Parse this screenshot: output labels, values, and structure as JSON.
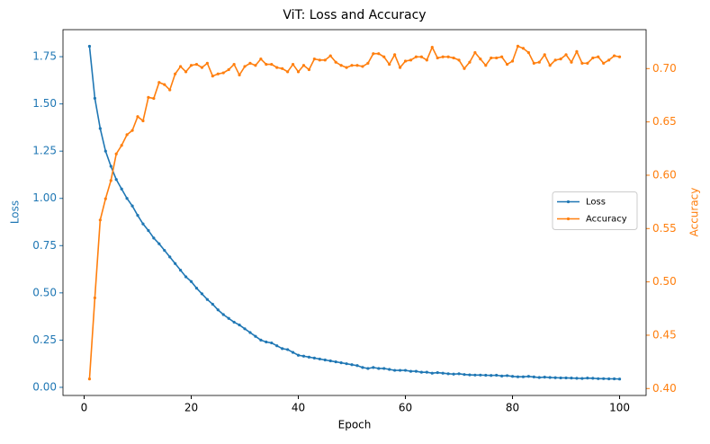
{
  "chart_data": {
    "type": "line",
    "title": "ViT: Loss and Accuracy",
    "x_label": "Epoch",
    "y_label": "Loss",
    "y2_label": "Accuracy",
    "x": [
      1,
      2,
      3,
      4,
      5,
      6,
      7,
      8,
      9,
      10,
      11,
      12,
      13,
      14,
      15,
      16,
      17,
      18,
      19,
      20,
      21,
      22,
      23,
      24,
      25,
      26,
      27,
      28,
      29,
      30,
      31,
      32,
      33,
      34,
      35,
      36,
      37,
      38,
      39,
      40,
      41,
      42,
      43,
      44,
      45,
      46,
      47,
      48,
      49,
      50,
      51,
      52,
      53,
      54,
      55,
      56,
      57,
      58,
      59,
      60,
      61,
      62,
      63,
      64,
      65,
      66,
      67,
      68,
      69,
      70,
      71,
      72,
      73,
      74,
      75,
      76,
      77,
      78,
      79,
      80,
      81,
      82,
      83,
      84,
      85,
      86,
      87,
      88,
      89,
      90,
      91,
      92,
      93,
      94,
      95,
      96,
      97,
      98,
      99,
      100
    ],
    "series": [
      {
        "name": "Loss",
        "color": "#1f77b4",
        "axis": "y",
        "values": [
          1.805,
          1.53,
          1.37,
          1.25,
          1.17,
          1.1,
          1.05,
          1.0,
          0.96,
          0.91,
          0.865,
          0.83,
          0.79,
          0.76,
          0.725,
          0.69,
          0.655,
          0.62,
          0.585,
          0.56,
          0.525,
          0.495,
          0.465,
          0.44,
          0.41,
          0.385,
          0.365,
          0.345,
          0.33,
          0.31,
          0.29,
          0.27,
          0.25,
          0.24,
          0.235,
          0.22,
          0.205,
          0.2,
          0.185,
          0.17,
          0.165,
          0.16,
          0.155,
          0.15,
          0.145,
          0.14,
          0.135,
          0.13,
          0.125,
          0.12,
          0.115,
          0.105,
          0.1,
          0.105,
          0.1,
          0.1,
          0.095,
          0.09,
          0.09,
          0.09,
          0.085,
          0.085,
          0.08,
          0.08,
          0.075,
          0.078,
          0.075,
          0.072,
          0.07,
          0.072,
          0.068,
          0.066,
          0.065,
          0.065,
          0.064,
          0.063,
          0.064,
          0.06,
          0.062,
          0.058,
          0.056,
          0.056,
          0.058,
          0.055,
          0.052,
          0.054,
          0.052,
          0.051,
          0.05,
          0.05,
          0.049,
          0.048,
          0.047,
          0.049,
          0.048,
          0.046,
          0.046,
          0.045,
          0.045,
          0.044
        ]
      },
      {
        "name": "Accuracy",
        "color": "#ff7f0e",
        "axis": "y2",
        "values": [
          0.409,
          0.485,
          0.558,
          0.578,
          0.595,
          0.62,
          0.628,
          0.638,
          0.642,
          0.655,
          0.651,
          0.673,
          0.672,
          0.687,
          0.685,
          0.68,
          0.695,
          0.702,
          0.697,
          0.703,
          0.704,
          0.701,
          0.705,
          0.693,
          0.695,
          0.696,
          0.699,
          0.704,
          0.694,
          0.702,
          0.705,
          0.703,
          0.709,
          0.704,
          0.704,
          0.701,
          0.7,
          0.697,
          0.704,
          0.697,
          0.703,
          0.699,
          0.709,
          0.708,
          0.708,
          0.712,
          0.706,
          0.703,
          0.701,
          0.703,
          0.703,
          0.702,
          0.705,
          0.714,
          0.714,
          0.711,
          0.704,
          0.713,
          0.701,
          0.707,
          0.708,
          0.711,
          0.711,
          0.708,
          0.72,
          0.71,
          0.711,
          0.711,
          0.71,
          0.708,
          0.7,
          0.706,
          0.715,
          0.709,
          0.703,
          0.71,
          0.71,
          0.711,
          0.704,
          0.707,
          0.721,
          0.719,
          0.715,
          0.705,
          0.706,
          0.713,
          0.703,
          0.708,
          0.709,
          0.713,
          0.706,
          0.716,
          0.705,
          0.705,
          0.71,
          0.711,
          0.705,
          0.708,
          0.712,
          0.711
        ]
      }
    ],
    "xlim": [
      -3.95,
      104.95
    ],
    "xticks": [
      0,
      20,
      40,
      60,
      80,
      100
    ],
    "ylim": [
      -0.043,
      1.893
    ],
    "yticks": [
      {
        "value": 0,
        "label": "0.00"
      },
      0.25,
      {
        "value": 0.5,
        "label": "0.50"
      },
      0.75,
      {
        "value": 1,
        "label": "1.00"
      },
      1.25,
      {
        "value": 1.5,
        "label": "1.50"
      },
      1.75
    ],
    "y2lim": [
      0.3935,
      0.7365
    ],
    "y2ticks": [
      {
        "value": 0.4,
        "label": "0.40"
      },
      0.45,
      {
        "value": 0.5,
        "label": "0.50"
      },
      0.55,
      {
        "value": 0.6,
        "label": "0.60"
      },
      0.65,
      {
        "value": 0.7,
        "label": "0.70"
      }
    ],
    "grid": false,
    "legend": "center right"
  }
}
